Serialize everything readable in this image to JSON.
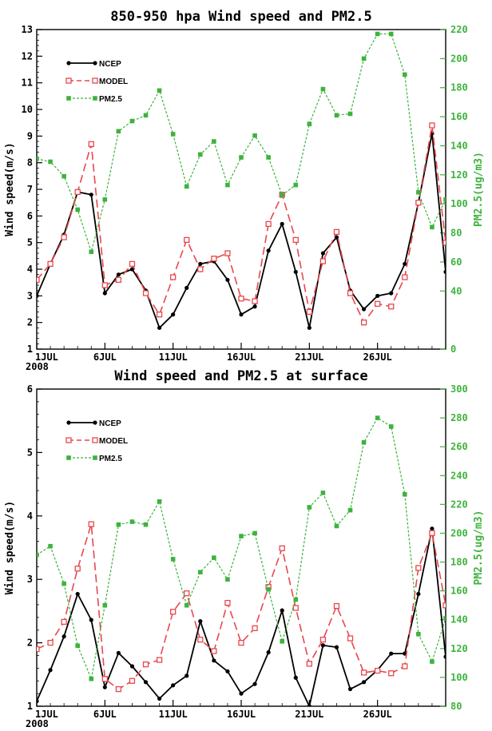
{
  "chart_data": [
    {
      "type": "line",
      "title": "850-950 hpa Wind speed and PM2.5",
      "ylabel": "Wind speed(m/s)",
      "y2label": "PM2.5(ug/m3)",
      "ylim": [
        1,
        13
      ],
      "y2lim": [
        0,
        220
      ],
      "yticks": [
        "1",
        "2",
        "3",
        "4",
        "5",
        "6",
        "7",
        "8",
        "9",
        "10",
        "11",
        "12",
        "13"
      ],
      "y2ticks": [
        "0",
        "40",
        "60",
        "80",
        "100",
        "120",
        "140",
        "160",
        "180",
        "200",
        "220"
      ],
      "y2tickvals": [
        0,
        40,
        60,
        80,
        100,
        120,
        140,
        160,
        180,
        200,
        220
      ],
      "xticks": [
        "1JUL",
        "6JUL",
        "11JUL",
        "16JUL",
        "21JUL",
        "26JUL"
      ],
      "xtickdays": [
        1,
        6,
        11,
        16,
        21,
        26
      ],
      "year_label": "2008",
      "xlim": [
        1,
        31
      ],
      "x": [
        1,
        2,
        3,
        4,
        5,
        6,
        7,
        8,
        9,
        10,
        11,
        12,
        13,
        14,
        15,
        16,
        17,
        18,
        19,
        20,
        21,
        22,
        23,
        24,
        25,
        26,
        27,
        28,
        29,
        30,
        31
      ],
      "legend_position": "top-left",
      "series": [
        {
          "name": "NCEP",
          "axis": "left",
          "style": "ncep",
          "values": [
            3.0,
            4.2,
            5.3,
            6.9,
            6.8,
            3.1,
            3.8,
            4.0,
            3.2,
            1.8,
            2.3,
            3.3,
            4.2,
            4.3,
            3.6,
            2.3,
            2.6,
            4.7,
            5.7,
            3.9,
            1.8,
            4.6,
            5.2,
            3.2,
            2.5,
            3.0,
            3.1,
            4.2,
            6.5,
            9.1,
            3.9
          ]
        },
        {
          "name": "MODEL",
          "axis": "left",
          "style": "model",
          "values": [
            3.6,
            4.2,
            5.2,
            6.9,
            8.7,
            3.4,
            3.6,
            4.2,
            3.1,
            2.3,
            3.7,
            5.1,
            4.0,
            4.4,
            4.6,
            2.9,
            2.8,
            5.7,
            6.8,
            5.1,
            2.4,
            4.3,
            5.4,
            3.1,
            2.0,
            2.7,
            2.6,
            3.7,
            6.5,
            9.4,
            5.0
          ]
        },
        {
          "name": "PM2.5",
          "axis": "right",
          "style": "pm",
          "values": [
            131,
            129,
            119,
            96,
            67,
            103,
            150,
            157,
            161,
            178,
            148,
            112,
            134,
            143,
            113,
            132,
            147,
            132,
            106,
            113,
            155,
            179,
            161,
            162,
            200,
            217,
            217,
            189,
            108,
            84,
            103
          ]
        }
      ]
    },
    {
      "type": "line",
      "title": "Wind speed and PM2.5 at surface",
      "ylabel": "Wind speed(m/s)",
      "y2label": "PM2.5(ug/m3)",
      "ylim": [
        1,
        6
      ],
      "y2lim": [
        80,
        300
      ],
      "yticks": [
        "1",
        "2",
        "3",
        "4",
        "5",
        "6"
      ],
      "y2ticks": [
        "80",
        "100",
        "120",
        "140",
        "160",
        "180",
        "200",
        "220",
        "240",
        "260",
        "280",
        "300"
      ],
      "y2tickvals": [
        80,
        100,
        120,
        140,
        160,
        180,
        200,
        220,
        240,
        260,
        280,
        300
      ],
      "xticks": [
        "1JUL",
        "6JUL",
        "11JUL",
        "16JUL",
        "21JUL",
        "26JUL"
      ],
      "xtickdays": [
        1,
        6,
        11,
        16,
        21,
        26
      ],
      "year_label": "2008",
      "xlim": [
        1,
        31
      ],
      "x": [
        1,
        2,
        3,
        4,
        5,
        6,
        7,
        8,
        9,
        10,
        11,
        12,
        13,
        14,
        15,
        16,
        17,
        18,
        19,
        20,
        21,
        22,
        23,
        24,
        25,
        26,
        27,
        28,
        29,
        30,
        31
      ],
      "legend_position": "top-left",
      "series": [
        {
          "name": "NCEP",
          "axis": "left",
          "style": "ncep",
          "values": [
            1.08,
            1.57,
            2.1,
            2.77,
            2.36,
            1.3,
            1.84,
            1.63,
            1.38,
            1.12,
            1.33,
            1.48,
            2.34,
            1.72,
            1.55,
            1.2,
            1.35,
            1.85,
            2.51,
            1.45,
            1.0,
            1.96,
            1.93,
            1.27,
            1.38,
            1.57,
            1.83,
            1.83,
            2.77,
            3.8,
            1.78
          ]
        },
        {
          "name": "MODEL",
          "axis": "left",
          "style": "model",
          "values": [
            1.9,
            2.0,
            2.33,
            3.17,
            3.87,
            1.43,
            1.27,
            1.4,
            1.66,
            1.73,
            2.49,
            2.78,
            2.05,
            1.87,
            2.63,
            2.0,
            2.23,
            2.88,
            3.49,
            2.55,
            1.67,
            2.05,
            2.58,
            2.07,
            1.53,
            1.56,
            1.52,
            1.63,
            3.18,
            3.73,
            2.59
          ]
        },
        {
          "name": "PM2.5",
          "axis": "right",
          "style": "pm",
          "values": [
            185,
            191,
            165,
            122,
            99,
            150,
            206,
            208,
            206,
            222,
            182,
            150,
            173,
            183,
            168,
            198,
            200,
            161,
            125,
            154,
            218,
            228,
            205,
            216,
            263,
            280,
            274,
            227,
            130,
            111,
            141
          ]
        }
      ]
    }
  ]
}
